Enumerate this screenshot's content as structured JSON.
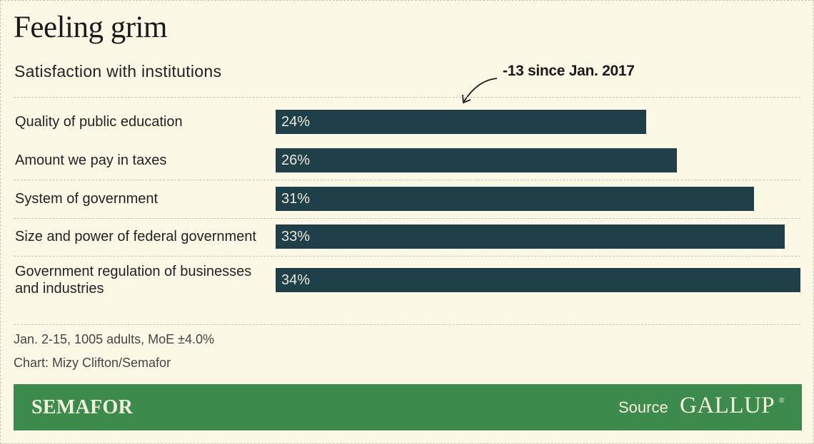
{
  "header": {
    "title": "Feeling grim",
    "subtitle": "Satisfaction with institutions"
  },
  "annotation": "-13 since Jan. 2017",
  "chart_data": {
    "type": "bar",
    "orientation": "horizontal",
    "title": "Feeling grim",
    "subtitle": "Satisfaction with institutions",
    "categories": [
      "Quality of public education",
      "Amount we pay in taxes",
      "System of government",
      "Size and power of federal government",
      "Government regulation of businesses and industries"
    ],
    "values": [
      24,
      26,
      31,
      33,
      34
    ],
    "value_labels": [
      "24%",
      "26%",
      "31%",
      "33%",
      "34%"
    ],
    "unit": "%",
    "xlim": [
      0,
      34
    ],
    "grid": false,
    "bar_color": "#1f3f49",
    "annotations": [
      {
        "text": "-13 since Jan. 2017",
        "target": "Quality of public education"
      }
    ]
  },
  "footnotes": {
    "sample": "Jan. 2-15, 1005 adults, MoE ±4.0%",
    "credit": "Chart: Mizy Clifton/Semafor"
  },
  "footer": {
    "brand": "SEMAFOR",
    "source_label": "Source",
    "source_logo": "GALLUP",
    "source_mark": "®",
    "background_color": "#3d8a4d"
  }
}
